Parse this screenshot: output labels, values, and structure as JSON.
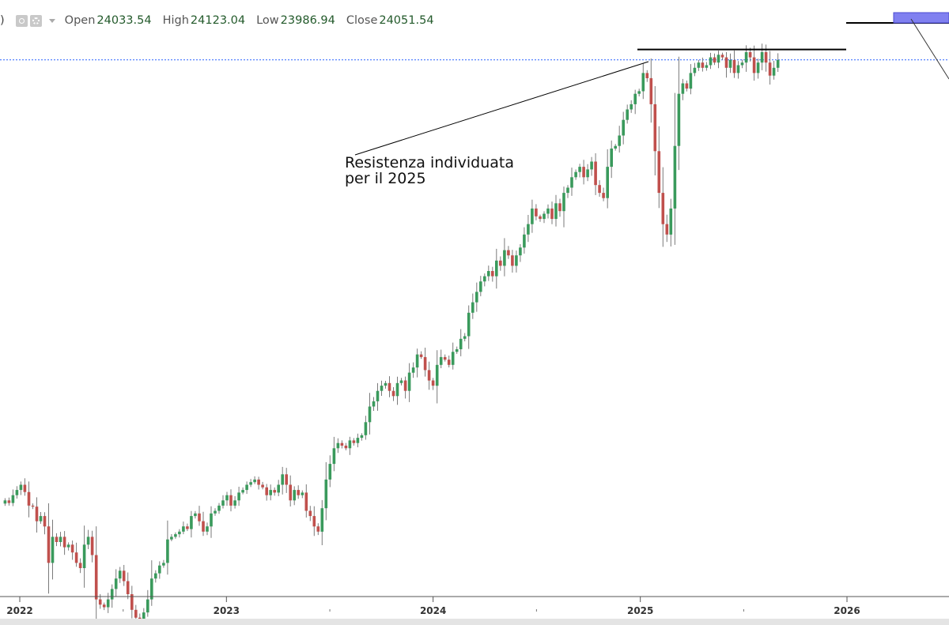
{
  "legend": {
    "open_label": "Open",
    "open_value": "24033.54",
    "high_label": "High",
    "high_value": "24123.04",
    "low_label": "Low",
    "low_value": "23986.94",
    "close_label": "Close",
    "close_value": "24051.54"
  },
  "annotation": {
    "line1": "Resistenza individuata",
    "line2": "per il 2025"
  },
  "colors": {
    "up": "#3a9a5c",
    "down": "#c0504d",
    "wick": "#7a7a7a",
    "resistance": "#000000",
    "last_price_line": "#2962ff",
    "marker": "#8080f0"
  },
  "chart_data": {
    "type": "candlestick",
    "x_axis": {
      "ticks": [
        {
          "label": "2022",
          "date": "2022-01-01"
        },
        {
          "label": "2023",
          "date": "2023-01-01"
        },
        {
          "label": "2024",
          "date": "2024-01-01"
        },
        {
          "label": "2025",
          "date": "2025-01-01"
        },
        {
          "label": "2026",
          "date": "2026-01-01"
        }
      ]
    },
    "resistance_level": 24250,
    "last_close": 24051.54,
    "ylim": [
      13800,
      25200
    ],
    "series": [
      {
        "interval": "weekly",
        "first_week": "2021-12-06",
        "closes": [
          15600,
          15550,
          15700,
          15800,
          15900,
          15760,
          15500,
          15480,
          15200,
          15300,
          15100,
          14400,
          14900,
          14800,
          14900,
          14700,
          14750,
          14600,
          14400,
          14300,
          14750,
          14900,
          14550,
          13700,
          13600,
          13550,
          13700,
          13900,
          14100,
          14250,
          14050,
          13800,
          13500,
          13350,
          13250,
          13450,
          13700,
          14100,
          14200,
          14350,
          14400,
          14850,
          14900,
          14950,
          15000,
          15100,
          15050,
          15300,
          15350,
          15200,
          15000,
          15100,
          15350,
          15400,
          15500,
          15600,
          15700,
          15500,
          15600,
          15750,
          15800,
          15900,
          15950,
          16000,
          15900,
          15850,
          15700,
          15800,
          15750,
          15900,
          16100,
          15900,
          15600,
          15800,
          15700,
          15750,
          15400,
          15300,
          15100,
          15000,
          15450,
          16000,
          16300,
          16600,
          16700,
          16650,
          16600,
          16750,
          16700,
          16800,
          16850,
          17100,
          17400,
          17500,
          17700,
          17800,
          17850,
          17700,
          17600,
          17850,
          17900,
          17700,
          18050,
          18150,
          18400,
          18350,
          18100,
          17900,
          17800,
          18200,
          18350,
          18300,
          18200,
          18450,
          18500,
          18700,
          18750,
          19200,
          19400,
          19600,
          19800,
          19900,
          20000,
          19900,
          20200,
          20100,
          20400,
          20300,
          20100,
          20300,
          20450,
          20700,
          20900,
          21200,
          21050,
          21000,
          21100,
          21200,
          21000,
          21300,
          21150,
          21500,
          21600,
          21800,
          21900,
          22000,
          21800,
          21950,
          22100,
          21650,
          21500,
          21400,
          22000,
          22350,
          22400,
          22600,
          22900,
          23100,
          23200,
          23400,
          23450,
          23800,
          23700,
          23200,
          22300,
          21500,
          20900,
          20700,
          21200,
          22400,
          23400,
          23600,
          23500,
          23800,
          23900,
          24000,
          23900,
          23950,
          24100,
          24000,
          24150,
          24100,
          23900,
          24050,
          23800,
          23950,
          24000,
          24200,
          24100,
          23800,
          24000,
          24200,
          24000,
          23750,
          23900,
          24050
        ]
      }
    ]
  }
}
